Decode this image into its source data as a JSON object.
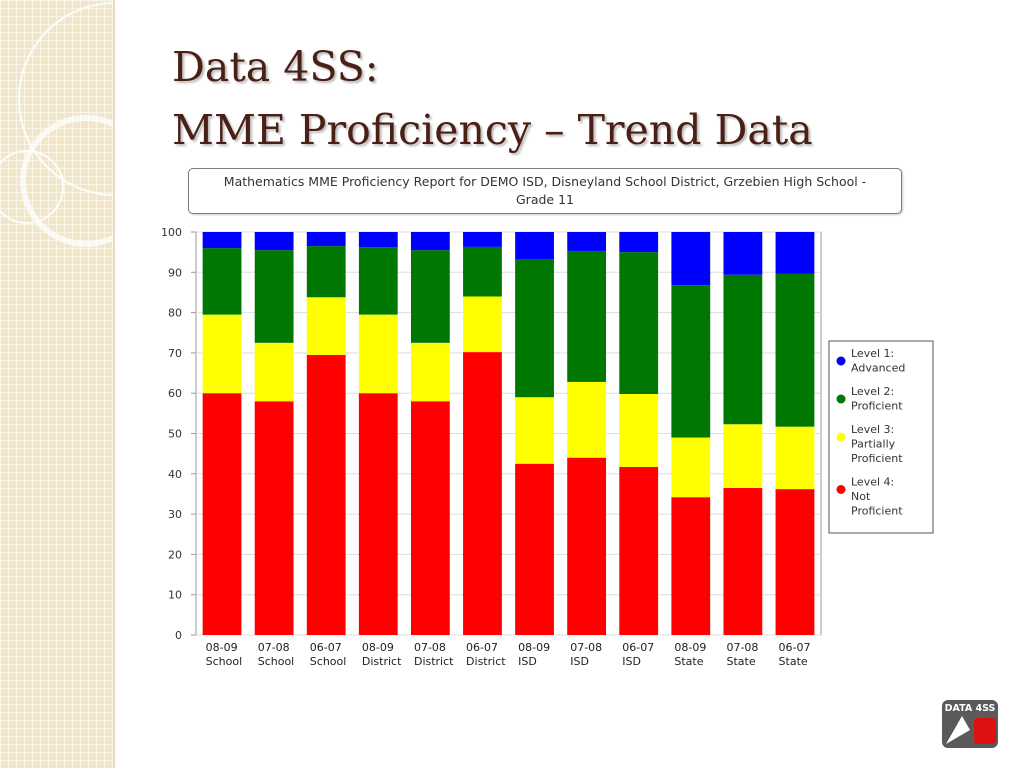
{
  "slide": {
    "title_lines": [
      "Data 4SS:",
      "MME Proficiency – Trend Data"
    ]
  },
  "logo": {
    "text": "DATA 4SS"
  },
  "chart_data": {
    "type": "bar",
    "stacked": true,
    "title": "Mathematics MME Proficiency Report for DEMO ISD, Disneyland School District, Grzebien High School - Grade 11",
    "categories": [
      [
        "08-09",
        "School"
      ],
      [
        "07-08",
        "School"
      ],
      [
        "06-07",
        "School"
      ],
      [
        "08-09",
        "District"
      ],
      [
        "07-08",
        "District"
      ],
      [
        "06-07",
        "District"
      ],
      [
        "08-09",
        "ISD"
      ],
      [
        "07-08",
        "ISD"
      ],
      [
        "06-07",
        "ISD"
      ],
      [
        "08-09",
        "State"
      ],
      [
        "07-08",
        "State"
      ],
      [
        "06-07",
        "State"
      ]
    ],
    "series": [
      {
        "name": "Level 4: Not Proficient",
        "legend_lines": [
          "Level 4:",
          "Not",
          "Proficient"
        ],
        "color": "#ff0000",
        "values": [
          60,
          58,
          69.5,
          60,
          58,
          70.2,
          42.5,
          44,
          41.7,
          34.2,
          36.5,
          36.2
        ]
      },
      {
        "name": "Level 3: Partially Proficient",
        "legend_lines": [
          "Level 3:",
          "Partially",
          "Proficient"
        ],
        "color": "#ffff00",
        "values": [
          19.5,
          14.5,
          14.3,
          19.5,
          14.5,
          13.8,
          16.5,
          18.8,
          18.1,
          14.8,
          15.8,
          15.5
        ]
      },
      {
        "name": "Level 2: Proficient",
        "legend_lines": [
          "Level 2:",
          "Proficient"
        ],
        "color": "#007700",
        "values": [
          16.5,
          23,
          12.7,
          16.7,
          23,
          12.3,
          34.3,
          32.5,
          35.2,
          37.8,
          37.1,
          38
        ]
      },
      {
        "name": "Level 1: Advanced",
        "legend_lines": [
          "Level 1:",
          "Advanced"
        ],
        "color": "#0000ff",
        "values": [
          4,
          4.5,
          3.5,
          3.8,
          4.5,
          3.7,
          6.7,
          4.7,
          5,
          13.2,
          10.6,
          10.3
        ]
      }
    ],
    "legend_order": [
      3,
      2,
      1,
      0
    ],
    "yticks": [
      0,
      10,
      20,
      30,
      40,
      50,
      60,
      70,
      80,
      90,
      100
    ],
    "ylim": [
      0,
      100
    ],
    "grid": true,
    "legend": "right"
  }
}
